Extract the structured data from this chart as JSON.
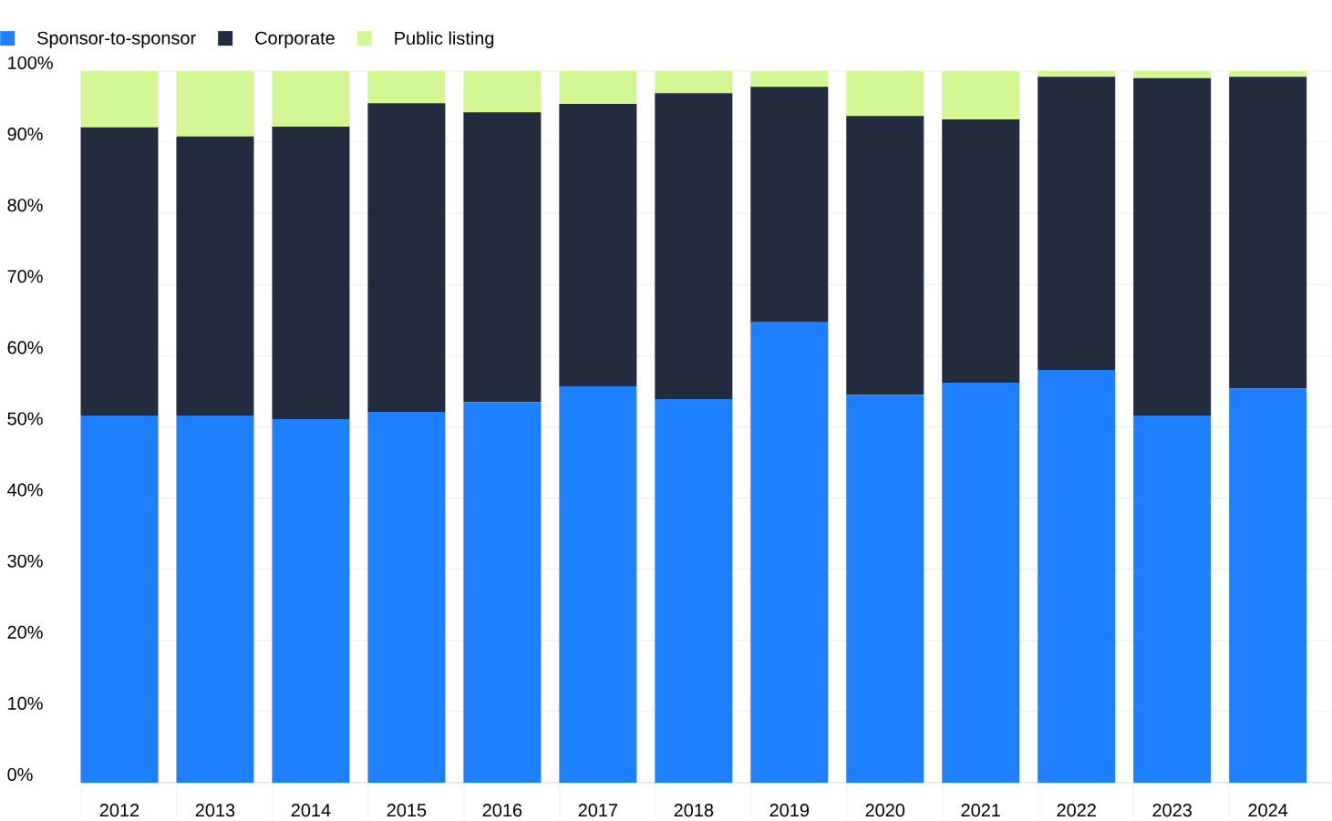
{
  "chart_data": {
    "type": "bar",
    "stacked": true,
    "grid": "y",
    "legend": "top left",
    "categories": [
      "2012",
      "2013",
      "2014",
      "2015",
      "2016",
      "2017",
      "2018",
      "2019",
      "2020",
      "2021",
      "2022",
      "2023",
      "2024"
    ],
    "series": [
      {
        "name": "Sponsor-to-sponsor",
        "color": "#1f80ff",
        "values": [
          51.6,
          51.6,
          51.1,
          52.1,
          53.5,
          55.7,
          53.9,
          64.7,
          54.5,
          56.2,
          58.0,
          51.6,
          55.4
        ]
      },
      {
        "name": "Corporate",
        "color": "#232b3e",
        "values": [
          40.5,
          39.2,
          41.1,
          43.4,
          40.7,
          39.7,
          43.0,
          33.1,
          39.2,
          37.0,
          41.2,
          47.4,
          43.8
        ]
      },
      {
        "name": "Public listing",
        "color": "#d4f796",
        "values": [
          7.9,
          9.2,
          7.8,
          4.5,
          5.8,
          4.6,
          3.1,
          2.2,
          6.3,
          6.8,
          0.8,
          1.0,
          0.8
        ]
      }
    ],
    "ylim": [
      0,
      100
    ],
    "yticks": [
      {
        "value": 0,
        "label": "0%"
      },
      {
        "value": 10,
        "label": "10%"
      },
      {
        "value": 20,
        "label": "20%"
      },
      {
        "value": 30,
        "label": "30%"
      },
      {
        "value": 40,
        "label": "40%"
      },
      {
        "value": 50,
        "label": "50%"
      },
      {
        "value": 60,
        "label": "60%"
      },
      {
        "value": 70,
        "label": "70%"
      },
      {
        "value": 80,
        "label": "80%"
      },
      {
        "value": 90,
        "label": "90%"
      },
      {
        "value": 100,
        "label": "100%"
      }
    ]
  }
}
